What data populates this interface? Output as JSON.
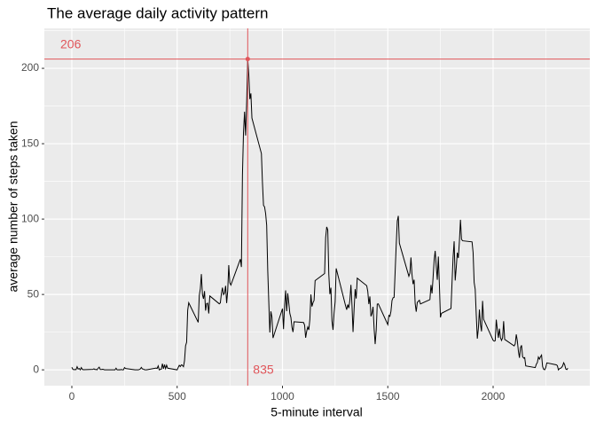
{
  "chart_data": {
    "type": "line",
    "title": "The average daily activity pattern",
    "x_label": "5-minute interval",
    "y_label": "average number of steps taken",
    "color": "#000000",
    "x": [
      0,
      5,
      10,
      15,
      20,
      25,
      30,
      35,
      40,
      45,
      50,
      55,
      100,
      105,
      110,
      115,
      120,
      125,
      130,
      135,
      140,
      145,
      150,
      155,
      200,
      205,
      210,
      215,
      220,
      225,
      230,
      235,
      240,
      245,
      250,
      255,
      300,
      305,
      310,
      315,
      320,
      325,
      330,
      335,
      340,
      345,
      350,
      355,
      400,
      405,
      410,
      415,
      420,
      425,
      430,
      435,
      440,
      445,
      450,
      455,
      500,
      505,
      510,
      515,
      520,
      525,
      530,
      535,
      540,
      545,
      550,
      555,
      600,
      605,
      610,
      615,
      620,
      625,
      630,
      635,
      640,
      645,
      650,
      655,
      700,
      705,
      710,
      715,
      720,
      725,
      730,
      735,
      740,
      745,
      750,
      755,
      800,
      805,
      810,
      815,
      820,
      825,
      830,
      835,
      840,
      845,
      850,
      855,
      900,
      905,
      910,
      915,
      920,
      925,
      930,
      935,
      940,
      945,
      950,
      955,
      1000,
      1005,
      1010,
      1015,
      1020,
      1025,
      1030,
      1035,
      1040,
      1045,
      1050,
      1055,
      1100,
      1105,
      1110,
      1115,
      1120,
      1125,
      1130,
      1135,
      1140,
      1145,
      1150,
      1155,
      1200,
      1205,
      1210,
      1215,
      1220,
      1225,
      1230,
      1235,
      1240,
      1245,
      1250,
      1255,
      1300,
      1305,
      1310,
      1315,
      1320,
      1325,
      1330,
      1335,
      1340,
      1345,
      1350,
      1355,
      1400,
      1405,
      1410,
      1415,
      1420,
      1425,
      1430,
      1435,
      1440,
      1445,
      1450,
      1455,
      1500,
      1505,
      1510,
      1515,
      1520,
      1525,
      1530,
      1535,
      1540,
      1545,
      1550,
      1555,
      1600,
      1605,
      1610,
      1615,
      1620,
      1625,
      1630,
      1635,
      1640,
      1645,
      1650,
      1655,
      1700,
      1705,
      1710,
      1715,
      1720,
      1725,
      1730,
      1735,
      1740,
      1745,
      1750,
      1755,
      1800,
      1805,
      1810,
      1815,
      1820,
      1825,
      1830,
      1835,
      1840,
      1845,
      1850,
      1855,
      1900,
      1905,
      1910,
      1915,
      1920,
      1925,
      1930,
      1935,
      1940,
      1945,
      1950,
      1955,
      2000,
      2005,
      2010,
      2015,
      2020,
      2025,
      2030,
      2035,
      2040,
      2045,
      2050,
      2055,
      2100,
      2105,
      2110,
      2115,
      2120,
      2125,
      2130,
      2135,
      2140,
      2145,
      2150,
      2155,
      2200,
      2205,
      2210,
      2215,
      2220,
      2225,
      2230,
      2235,
      2240,
      2245,
      2250,
      2255,
      2300,
      2305,
      2310,
      2315,
      2320,
      2325,
      2330,
      2335,
      2340,
      2345,
      2350,
      2355
    ],
    "values": [
      1.7,
      0.3,
      0.1,
      0.2,
      0.1,
      2.1,
      0.5,
      0.9,
      0,
      1.5,
      0.3,
      0.1,
      0.3,
      0.7,
      0.2,
      0.3,
      0,
      1.1,
      1.8,
      0.2,
      0.2,
      0.4,
      0.3,
      0,
      0,
      0,
      1.1,
      0,
      0,
      0.1,
      0,
      0.2,
      0,
      0,
      1.5,
      0.9,
      0,
      0,
      0,
      0,
      0.2,
      0.6,
      1.6,
      0.6,
      0.5,
      0.1,
      0,
      0,
      1.2,
      0.9,
      2.6,
      0,
      0.3,
      0.4,
      4.1,
      0.7,
      3.5,
      0.8,
      3.1,
      1.1,
      0,
      1.6,
      3.0,
      2.2,
      3.3,
      3.0,
      2.1,
      6.1,
      16.0,
      18.3,
      39.5,
      44.5,
      31.5,
      49.3,
      53.8,
      63.5,
      50.0,
      47.1,
      52.2,
      39.3,
      44.0,
      44.2,
      37.4,
      49.0,
      43.8,
      44.4,
      50.5,
      54.5,
      49.9,
      51.0,
      55.7,
      44.3,
      52.3,
      69.5,
      57.8,
      56.2,
      73.4,
      68.2,
      129.4,
      157.5,
      171.2,
      155.4,
      177.3,
      206.2,
      195.9,
      179.6,
      183.4,
      167.0,
      143.5,
      124.0,
      109.1,
      108.1,
      103.7,
      96.0,
      66.2,
      45.2,
      24.8,
      38.8,
      35.0,
      21.1,
      40.6,
      27.0,
      42.4,
      52.7,
      38.9,
      50.8,
      44.3,
      37.4,
      34.7,
      28.3,
      25.1,
      31.9,
      31.4,
      29.7,
      21.3,
      25.5,
      28.4,
      26.5,
      33.4,
      50.0,
      42.0,
      44.6,
      46.0,
      59.2,
      63.9,
      87.7,
      94.8,
      92.8,
      63.4,
      50.2,
      54.5,
      32.4,
      26.5,
      37.7,
      45.1,
      67.3,
      42.3,
      39.9,
      43.3,
      41.0,
      46.2,
      56.4,
      42.8,
      25.1,
      40.0,
      53.5,
      47.3,
      60.8,
      55.8,
      52.0,
      43.6,
      48.7,
      35.5,
      37.5,
      41.8,
      27.5,
      17.1,
      26.1,
      43.6,
      43.8,
      30.0,
      36.1,
      35.5,
      38.8,
      46.0,
      47.8,
      48.1,
      65.3,
      82.9,
      98.7,
      102.1,
      84.0,
      62.1,
      64.1,
      74.5,
      63.2,
      56.9,
      59.8,
      43.9,
      38.6,
      44.7,
      45.5,
      46.2,
      43.7,
      46.6,
      56.3,
      50.7,
      61.2,
      72.7,
      78.9,
      68.9,
      59.7,
      75.1,
      56.5,
      34.8,
      37.5,
      40.7,
      58.0,
      74.7,
      85.3,
      59.3,
      67.8,
      77.7,
      74.2,
      85.3,
      99.5,
      86.6,
      85.6,
      84.9,
      77.8,
      58.0,
      53.4,
      36.3,
      20.7,
      27.4,
      40.0,
      30.2,
      25.5,
      45.7,
      33.5,
      19.6,
      19.0,
      19.3,
      33.3,
      26.8,
      21.2,
      27.3,
      21.3,
      19.5,
      21.3,
      32.3,
      20.2,
      15.9,
      17.2,
      23.5,
      19.2,
      12.5,
      8.0,
      14.7,
      16.3,
      8.7,
      7.8,
      8.1,
      2.6,
      1.5,
      3.7,
      4.8,
      8.5,
      7.1,
      8.7,
      9.8,
      2.2,
      0.3,
      0.1,
      1.6,
      4.6,
      3.3,
      2.8,
      0,
      0.8,
      1.0,
      1.6,
      2.6,
      4.7,
      3.3,
      0.6,
      0.2,
      1.1
    ],
    "xlim": [
      -130.5,
      2459
    ],
    "ylim": [
      -10.5,
      226.5
    ],
    "xticks": [
      0,
      500,
      1000,
      1500,
      2000
    ],
    "yticks": [
      0,
      50,
      100,
      150,
      200
    ],
    "xminor": [
      250,
      750,
      1250,
      1750,
      2250
    ],
    "yminor": [
      25,
      75,
      125,
      175,
      225
    ],
    "grid": true,
    "annotations": {
      "hline": 206.17,
      "hline_label": "206",
      "vline": 835,
      "vline_label": "835",
      "color": "#E0555A"
    }
  }
}
